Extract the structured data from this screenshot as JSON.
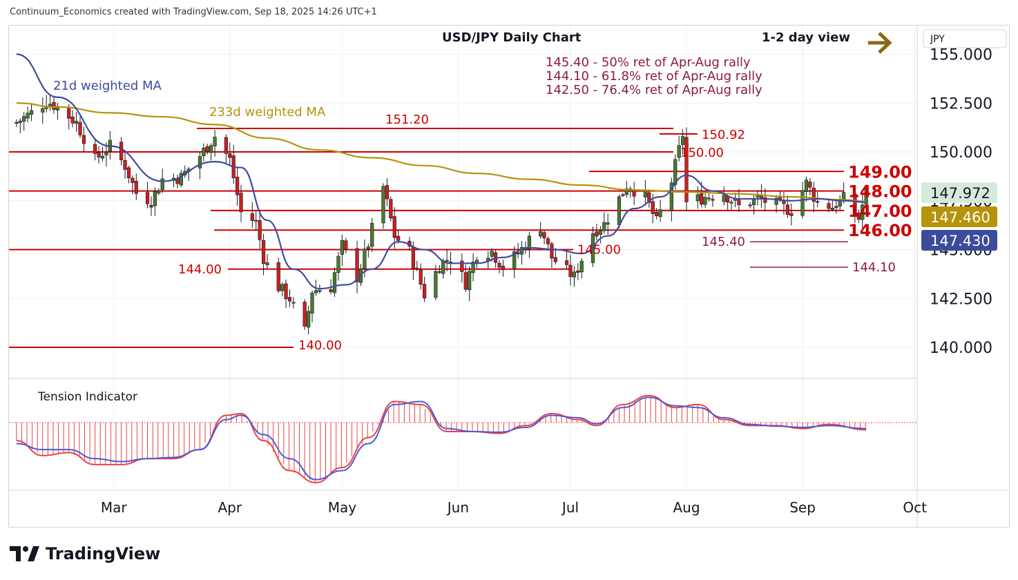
{
  "header": {
    "text": "Continuum_Economics created with TradingView.com, Sep 18, 2025 14:26 UTC+1"
  },
  "title": "USD/JPY Daily Chart",
  "view_label": "1-2 day view",
  "currency_label": "JPY",
  "retracements": [
    "145.40 - 50% ret of Apr-Aug rally",
    "144.10 - 61.8% ret of Apr-Aug rally",
    "142.50 - 76.4% ret of Apr-Aug rally"
  ],
  "ma_labels": {
    "ma21": "21d weighted MA",
    "ma233": "233d weighted MA"
  },
  "indicator_label": "Tension Indicator",
  "brand": "TradingView",
  "colors": {
    "up": "#4a7a2e",
    "down": "#cc1f1f",
    "ma21": "#3d4b9c",
    "ma233": "#b5930a",
    "level": "#cc0000",
    "ret": "#8b1a4a",
    "arrow": "#8b6914",
    "price_bg": "#d6eadb",
    "ma233_bg": "#b5930a",
    "ma21_bg": "#3d4b9c"
  },
  "price_tags": {
    "last": "147.972",
    "ma233": "147.460",
    "ma21": "147.430"
  },
  "chart_data": {
    "type": "candlestick",
    "y_axis": {
      "ticks": [
        "155.000",
        "152.500",
        "150.000",
        "147.500",
        "145.000",
        "142.500",
        "140.000"
      ],
      "range": [
        139,
        156.5
      ]
    },
    "x_axis": {
      "ticks": [
        "Mar",
        "Apr",
        "May",
        "Jun",
        "Jul",
        "Aug",
        "Sep",
        "Oct"
      ]
    },
    "levels": [
      {
        "value": 151.2,
        "label": "151.20"
      },
      {
        "value": 150.92,
        "label": "150.92"
      },
      {
        "value": 150.0,
        "label": "150.00"
      },
      {
        "value": 149.0,
        "label": "149.00"
      },
      {
        "value": 148.0,
        "label": "148.00"
      },
      {
        "value": 147.0,
        "label": "147.00"
      },
      {
        "value": 146.0,
        "label": "146.00"
      },
      {
        "value": 145.4,
        "label": "145.40"
      },
      {
        "value": 145.0,
        "label": "145.00"
      },
      {
        "value": 144.1,
        "label": "144.10"
      },
      {
        "value": 144.0,
        "label": "144.00"
      },
      {
        "value": 140.0,
        "label": "140.00"
      }
    ],
    "close_path": [
      [
        "2025-02-03",
        151.5
      ],
      [
        "2025-02-07",
        152.0
      ],
      [
        "2025-02-11",
        152.6
      ],
      [
        "2025-02-14",
        152.3
      ],
      [
        "2025-02-19",
        151.5
      ],
      [
        "2025-02-24",
        149.6
      ],
      [
        "2025-02-28",
        150.3
      ],
      [
        "2025-03-04",
        149.3
      ],
      [
        "2025-03-07",
        147.9
      ],
      [
        "2025-03-11",
        147.5
      ],
      [
        "2025-03-14",
        148.6
      ],
      [
        "2025-03-19",
        148.7
      ],
      [
        "2025-03-24",
        149.8
      ],
      [
        "2025-03-28",
        150.8
      ],
      [
        "2025-04-01",
        149.6
      ],
      [
        "2025-04-04",
        146.9
      ],
      [
        "2025-04-08",
        146.4
      ],
      [
        "2025-04-10",
        144.6
      ],
      [
        "2025-04-14",
        143.1
      ],
      [
        "2025-04-17",
        142.5
      ],
      [
        "2025-04-21",
        140.8
      ],
      [
        "2025-04-23",
        142.9
      ],
      [
        "2025-04-28",
        143.1
      ],
      [
        "2025-05-01",
        145.2
      ],
      [
        "2025-05-05",
        143.6
      ],
      [
        "2025-05-08",
        145.3
      ],
      [
        "2025-05-12",
        148.2
      ],
      [
        "2025-05-15",
        145.7
      ],
      [
        "2025-05-19",
        144.9
      ],
      [
        "2025-05-23",
        142.7
      ],
      [
        "2025-05-27",
        144.2
      ],
      [
        "2025-05-30",
        144.6
      ],
      [
        "2025-06-03",
        143.3
      ],
      [
        "2025-06-06",
        144.8
      ],
      [
        "2025-06-10",
        144.9
      ],
      [
        "2025-06-13",
        144.1
      ],
      [
        "2025-06-17",
        144.8
      ],
      [
        "2025-06-23",
        146.2
      ],
      [
        "2025-06-26",
        144.6
      ],
      [
        "2025-06-30",
        143.9
      ],
      [
        "2025-07-02",
        143.6
      ],
      [
        "2025-07-07",
        145.9
      ],
      [
        "2025-07-10",
        146.3
      ],
      [
        "2025-07-14",
        147.6
      ],
      [
        "2025-07-16",
        148.3
      ],
      [
        "2025-07-21",
        147.7
      ],
      [
        "2025-07-24",
        146.4
      ],
      [
        "2025-07-28",
        148.5
      ],
      [
        "2025-07-31",
        150.9
      ],
      [
        "2025-08-01",
        147.4
      ],
      [
        "2025-08-06",
        147.7
      ],
      [
        "2025-08-11",
        147.9
      ],
      [
        "2025-08-15",
        147.2
      ],
      [
        "2025-08-20",
        147.6
      ],
      [
        "2025-08-25",
        147.3
      ],
      [
        "2025-08-29",
        147.0
      ],
      [
        "2025-09-02",
        148.4
      ],
      [
        "2025-09-05",
        147.4
      ],
      [
        "2025-09-09",
        147.2
      ],
      [
        "2025-09-12",
        147.6
      ],
      [
        "2025-09-16",
        146.6
      ],
      [
        "2025-09-18",
        147.97
      ]
    ],
    "ma21_path": [
      [
        "2025-02-03",
        155.0
      ],
      [
        "2025-02-14",
        152.8
      ],
      [
        "2025-02-28",
        150.3
      ],
      [
        "2025-03-14",
        148.5
      ],
      [
        "2025-03-28",
        149.5
      ],
      [
        "2025-04-04",
        149.2
      ],
      [
        "2025-04-11",
        146.5
      ],
      [
        "2025-04-18",
        144.0
      ],
      [
        "2025-04-25",
        143.0
      ],
      [
        "2025-05-02",
        143.2
      ],
      [
        "2025-05-09",
        144.0
      ],
      [
        "2025-05-16",
        145.4
      ],
      [
        "2025-05-23",
        145.0
      ],
      [
        "2025-05-30",
        144.3
      ],
      [
        "2025-06-06",
        144.3
      ],
      [
        "2025-06-13",
        144.6
      ],
      [
        "2025-06-20",
        145.1
      ],
      [
        "2025-06-27",
        145.0
      ],
      [
        "2025-07-04",
        144.8
      ],
      [
        "2025-07-11",
        145.7
      ],
      [
        "2025-07-18",
        147.1
      ],
      [
        "2025-07-25",
        147.7
      ],
      [
        "2025-08-01",
        148.8
      ],
      [
        "2025-08-08",
        148.0
      ],
      [
        "2025-08-15",
        147.6
      ],
      [
        "2025-08-22",
        147.6
      ],
      [
        "2025-08-29",
        147.5
      ],
      [
        "2025-09-05",
        147.6
      ],
      [
        "2025-09-12",
        147.5
      ],
      [
        "2025-09-18",
        147.43
      ]
    ],
    "ma233_path": [
      [
        "2025-02-03",
        152.5
      ],
      [
        "2025-02-14",
        152.3
      ],
      [
        "2025-02-28",
        152.0
      ],
      [
        "2025-03-14",
        151.8
      ],
      [
        "2025-03-28",
        151.4
      ],
      [
        "2025-04-11",
        150.7
      ],
      [
        "2025-04-25",
        150.1
      ],
      [
        "2025-05-09",
        149.7
      ],
      [
        "2025-05-23",
        149.3
      ],
      [
        "2025-06-06",
        148.9
      ],
      [
        "2025-06-20",
        148.6
      ],
      [
        "2025-07-04",
        148.3
      ],
      [
        "2025-07-18",
        148.05
      ],
      [
        "2025-08-01",
        147.95
      ],
      [
        "2025-08-15",
        147.85
      ],
      [
        "2025-08-29",
        147.7
      ],
      [
        "2025-09-12",
        147.55
      ],
      [
        "2025-09-18",
        147.46
      ]
    ],
    "tension_indicator": {
      "zero_line": true,
      "fast": [
        [
          "2025-02-03",
          -0.3
        ],
        [
          "2025-02-10",
          -0.55
        ],
        [
          "2025-02-17",
          -0.5
        ],
        [
          "2025-02-24",
          -0.7
        ],
        [
          "2025-03-03",
          -0.7
        ],
        [
          "2025-03-10",
          -0.6
        ],
        [
          "2025-03-17",
          -0.6
        ],
        [
          "2025-03-24",
          -0.45
        ],
        [
          "2025-03-31",
          0.12
        ],
        [
          "2025-04-04",
          0.15
        ],
        [
          "2025-04-10",
          -0.3
        ],
        [
          "2025-04-17",
          -0.8
        ],
        [
          "2025-04-24",
          -1.0
        ],
        [
          "2025-05-01",
          -0.75
        ],
        [
          "2025-05-08",
          -0.25
        ],
        [
          "2025-05-15",
          0.35
        ],
        [
          "2025-05-22",
          0.3
        ],
        [
          "2025-05-29",
          -0.15
        ],
        [
          "2025-06-05",
          -0.15
        ],
        [
          "2025-06-12",
          -0.18
        ],
        [
          "2025-06-19",
          -0.05
        ],
        [
          "2025-06-26",
          0.15
        ],
        [
          "2025-07-03",
          0.05
        ],
        [
          "2025-07-08",
          -0.05
        ],
        [
          "2025-07-15",
          0.3
        ],
        [
          "2025-07-22",
          0.45
        ],
        [
          "2025-07-29",
          0.25
        ],
        [
          "2025-08-04",
          0.3
        ],
        [
          "2025-08-11",
          0.05
        ],
        [
          "2025-08-18",
          -0.05
        ],
        [
          "2025-08-25",
          -0.05
        ],
        [
          "2025-09-01",
          -0.1
        ],
        [
          "2025-09-08",
          -0.03
        ],
        [
          "2025-09-18",
          -0.12
        ]
      ],
      "slow": [
        [
          "2025-02-03",
          -0.35
        ],
        [
          "2025-02-10",
          -0.45
        ],
        [
          "2025-02-17",
          -0.45
        ],
        [
          "2025-02-24",
          -0.6
        ],
        [
          "2025-03-03",
          -0.65
        ],
        [
          "2025-03-10",
          -0.6
        ],
        [
          "2025-03-17",
          -0.58
        ],
        [
          "2025-03-24",
          -0.45
        ],
        [
          "2025-03-31",
          0.05
        ],
        [
          "2025-04-04",
          0.12
        ],
        [
          "2025-04-10",
          -0.2
        ],
        [
          "2025-04-17",
          -0.6
        ],
        [
          "2025-04-24",
          -0.95
        ],
        [
          "2025-05-01",
          -0.8
        ],
        [
          "2025-05-08",
          -0.35
        ],
        [
          "2025-05-15",
          0.3
        ],
        [
          "2025-05-22",
          0.35
        ],
        [
          "2025-05-29",
          -0.1
        ],
        [
          "2025-06-05",
          -0.15
        ],
        [
          "2025-06-12",
          -0.16
        ],
        [
          "2025-06-19",
          -0.08
        ],
        [
          "2025-06-26",
          0.12
        ],
        [
          "2025-07-03",
          0.08
        ],
        [
          "2025-07-08",
          -0.02
        ],
        [
          "2025-07-15",
          0.25
        ],
        [
          "2025-07-22",
          0.42
        ],
        [
          "2025-07-29",
          0.28
        ],
        [
          "2025-08-04",
          0.25
        ],
        [
          "2025-08-11",
          0.08
        ],
        [
          "2025-08-18",
          -0.03
        ],
        [
          "2025-08-25",
          -0.06
        ],
        [
          "2025-09-01",
          -0.08
        ],
        [
          "2025-09-08",
          -0.05
        ],
        [
          "2025-09-18",
          -0.1
        ]
      ]
    }
  }
}
